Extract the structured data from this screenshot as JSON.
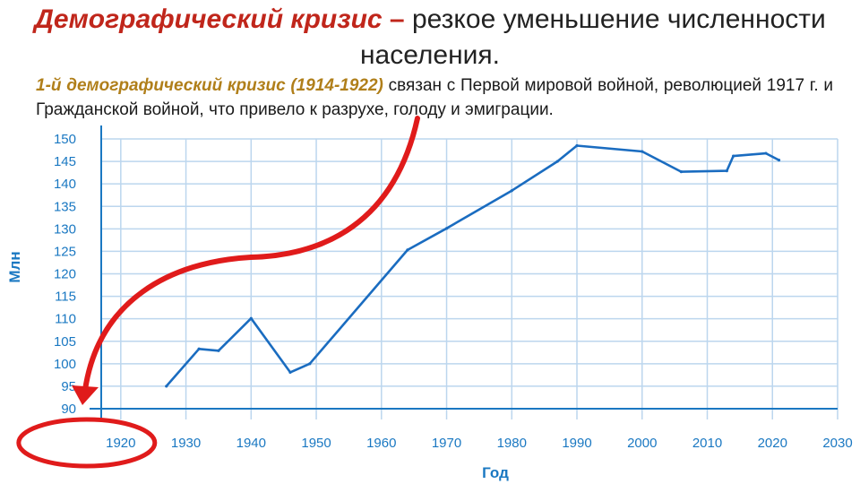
{
  "slide": {
    "title_term": "Демографический  кризис",
    "title_dash": " – ",
    "title_rest": "резкое уменьшение численности населения.",
    "crisis_label": "1-й  демографический  кризис  (1914-1922)",
    "crisis_text": " связан с Первой мировой войной, революцией 1917 г. и Гражданской войной, что привело к разрухе, голоду и эмиграции."
  },
  "colors": {
    "line": "#1a6cc0",
    "grid": "#bcd6ee",
    "axis": "#1a78c2",
    "highlight": "#e01b1b"
  },
  "chart_data": {
    "type": "line",
    "xlabel": "Год",
    "ylabel": "Млн",
    "xlim": [
      1917,
      2030
    ],
    "ylim": [
      90,
      150
    ],
    "x_ticks": [
      "1920",
      "1930",
      "1940",
      "1950",
      "1960",
      "1970",
      "1980",
      "1990",
      "2000",
      "2010",
      "2020",
      "2030"
    ],
    "y_ticks": [
      "90",
      "95",
      "100",
      "105",
      "110",
      "115",
      "120",
      "125",
      "130",
      "135",
      "140",
      "145",
      "150"
    ],
    "grid": true,
    "legend": false,
    "series": [
      {
        "x": [
          1927,
          1932,
          1935,
          1940,
          1946,
          1949,
          1964,
          1970,
          1980,
          1987,
          1990,
          2000,
          2006,
          2013,
          2014,
          2019,
          2021
        ],
        "y": [
          95,
          103.3,
          102.9,
          110.1,
          98.1,
          100,
          125.3,
          130.1,
          138.5,
          145,
          148.5,
          147.2,
          142.7,
          142.9,
          146.2,
          146.8,
          145.3
        ]
      }
    ],
    "highlight": "1920"
  }
}
